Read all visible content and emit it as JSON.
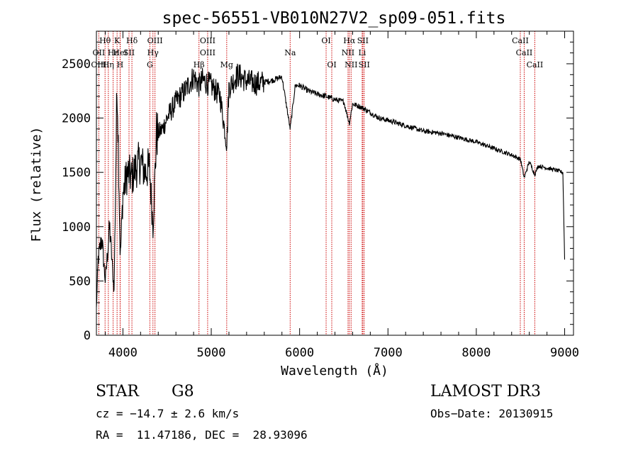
{
  "chart_data": {
    "type": "line",
    "title": "spec-56551-VB010N27V2_sp09-051.fits",
    "xlabel": "Wavelength (Å)",
    "ylabel": "Flux (relative)",
    "xlim": [
      3700,
      9100
    ],
    "ylim": [
      0,
      2800
    ],
    "xticks": [
      4000,
      5000,
      6000,
      7000,
      8000,
      9000
    ],
    "yticks": [
      0,
      500,
      1000,
      1500,
      2000,
      2500
    ],
    "line_color": "#000000",
    "marker_color": "#cc0000",
    "spectrum_anchors": {
      "x": [
        3700,
        3720,
        3760,
        3800,
        3850,
        3900,
        3935,
        3970,
        4000,
        4050,
        4100,
        4150,
        4200,
        4250,
        4300,
        4340,
        4380,
        4450,
        4500,
        4600,
        4700,
        4800,
        4861,
        4900,
        5000,
        5100,
        5175,
        5200,
        5300,
        5400,
        5500,
        5600,
        5700,
        5800,
        5893,
        5950,
        6000,
        6100,
        6200,
        6300,
        6400,
        6500,
        6563,
        6600,
        6700,
        6800,
        6900,
        7000,
        7200,
        7400,
        7600,
        7800,
        8000,
        8200,
        8400,
        8500,
        8542,
        8600,
        8662,
        8700,
        8800,
        8900,
        8980,
        9000
      ],
      "y": [
        250,
        700,
        900,
        500,
        1000,
        400,
        2400,
        700,
        1300,
        1500,
        1450,
        1550,
        1600,
        1500,
        1550,
        1000,
        1850,
        1900,
        2000,
        2150,
        2250,
        2380,
        2300,
        2350,
        2300,
        2200,
        1750,
        2280,
        2400,
        2340,
        2320,
        2330,
        2350,
        2380,
        1900,
        2300,
        2300,
        2250,
        2220,
        2200,
        2170,
        2150,
        1950,
        2130,
        2100,
        2050,
        2000,
        1980,
        1930,
        1880,
        1860,
        1820,
        1780,
        1720,
        1660,
        1620,
        1450,
        1600,
        1480,
        1560,
        1540,
        1520,
        1500,
        700
      ]
    },
    "lines": [
      {
        "label": "Hθ",
        "x": 3798,
        "row": 1
      },
      {
        "label": "K",
        "x": 3934,
        "row": 1
      },
      {
        "label": "Hδ",
        "x": 4102,
        "row": 1
      },
      {
        "label": "OIII",
        "x": 4363,
        "row": 1
      },
      {
        "label": "OIII",
        "x": 4959,
        "row": 1
      },
      {
        "label": "OI",
        "x": 6300,
        "row": 1
      },
      {
        "label": "Hα",
        "x": 6563,
        "row": 1
      },
      {
        "label": "SII",
        "x": 6716,
        "row": 1
      },
      {
        "label": "CaII",
        "x": 8498,
        "row": 1
      },
      {
        "label": "OII",
        "x": 3727,
        "row": 2
      },
      {
        "label": "Hε",
        "x": 3889,
        "row": 2
      },
      {
        "label": "HeI",
        "x": 3970,
        "row": 2
      },
      {
        "label": "SII",
        "x": 4069,
        "row": 2
      },
      {
        "label": "Hγ",
        "x": 4340,
        "row": 2
      },
      {
        "label": "OIII",
        "x": 4959,
        "row": 2
      },
      {
        "label": "Na",
        "x": 5893,
        "row": 2
      },
      {
        "label": "NII",
        "x": 6548,
        "row": 2
      },
      {
        "label": "Li",
        "x": 6708,
        "row": 2
      },
      {
        "label": "CaII",
        "x": 8542,
        "row": 2
      },
      {
        "label": "OIII",
        "x": 3727,
        "row": 3
      },
      {
        "label": "Hη",
        "x": 3835,
        "row": 3
      },
      {
        "label": "H",
        "x": 3968,
        "row": 3
      },
      {
        "label": "G",
        "x": 4305,
        "row": 3
      },
      {
        "label": "Hβ",
        "x": 4861,
        "row": 3
      },
      {
        "label": "Mg",
        "x": 5175,
        "row": 3
      },
      {
        "label": "OI",
        "x": 6364,
        "row": 3
      },
      {
        "label": "NII",
        "x": 6583,
        "row": 3
      },
      {
        "label": "SII",
        "x": 6731,
        "row": 3
      },
      {
        "label": "CaII",
        "x": 8662,
        "row": 3
      }
    ]
  },
  "info": {
    "object_type": "STAR",
    "subclass": "G8",
    "survey": "LAMOST DR3",
    "cz": "cz = −14.7 ± 2.6 km/s",
    "obs_date": "Obs−Date: 20130915",
    "coords": "RA =  11.47186, DEC =  28.93096"
  }
}
